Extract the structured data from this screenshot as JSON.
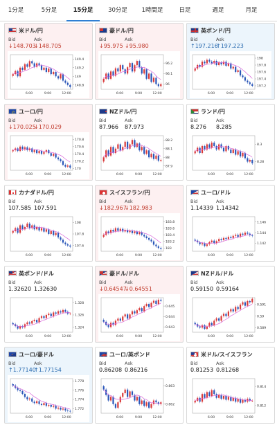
{
  "tabs": [
    {
      "label": "1分足",
      "active": false
    },
    {
      "label": "5分足",
      "active": false
    },
    {
      "label": "15分足",
      "active": true
    },
    {
      "label": "30分足",
      "active": false
    },
    {
      "label": "1時間足",
      "active": false
    },
    {
      "label": "日足",
      "active": false
    },
    {
      "label": "週足",
      "active": false
    },
    {
      "label": "月足",
      "active": false
    }
  ],
  "labels": {
    "bid": "Bid",
    "ask": "Ask"
  },
  "colors": {
    "up_bg": "#ecf5fc",
    "down_bg": "#fdf0f1",
    "up_text": "#2b6cb0",
    "down_text": "#c0392b",
    "candle_up": "#d93a3a",
    "candle_down": "#2a56b8",
    "ma_line": "#d966d9"
  },
  "cards": [
    {
      "pair": "米ドル/円",
      "flag": "us",
      "trend": "down",
      "bid": "↓148.703",
      "ask": "↓148.705",
      "chart_data": {
        "type": "candlestick",
        "yticks": [
          "149.4",
          "149.2",
          "149",
          "148.8"
        ],
        "ylim": [
          148.7,
          149.5
        ],
        "xticks": [
          "6:00",
          "9:00",
          "12:00"
        ],
        "close": [
          149.05,
          149.12,
          149.0,
          149.2,
          149.15,
          149.28,
          149.22,
          149.35,
          149.3,
          149.22,
          149.3,
          149.25,
          149.15,
          149.2,
          149.1,
          149.18,
          149.05,
          149.1,
          149.0,
          148.95,
          149.05,
          148.9,
          148.85,
          148.8,
          148.75
        ]
      }
    },
    {
      "pair": "豪ドル/円",
      "flag": "au",
      "trend": "down",
      "bid": "↓95.975",
      "ask": "↓95.980",
      "chart_data": {
        "type": "candlestick",
        "yticks": [
          "96.2",
          "96.1",
          "96"
        ],
        "ylim": [
          95.95,
          96.28
        ],
        "xticks": [
          "6:00",
          "9:00",
          "12:00"
        ],
        "close": [
          96.05,
          96.1,
          96.05,
          96.12,
          96.08,
          96.15,
          96.12,
          96.18,
          96.14,
          96.1,
          96.16,
          96.2,
          96.12,
          96.18,
          96.22,
          96.16,
          96.1,
          96.14,
          96.05,
          96.1,
          96.02,
          96.06,
          96.0,
          95.98,
          96.0
        ]
      }
    },
    {
      "pair": "英ポンド/円",
      "flag": "gb",
      "trend": "up",
      "bid": "↑197.216",
      "ask": "↑197.223",
      "chart_data": {
        "type": "candlestick",
        "yticks": [
          "198",
          "197.8",
          "197.6",
          "197.4",
          "197.2"
        ],
        "ylim": [
          197.1,
          198.1
        ],
        "xticks": [
          "6:00",
          "9:00",
          "12:00"
        ],
        "close": [
          197.7,
          197.8,
          197.75,
          197.9,
          197.85,
          197.95,
          197.9,
          197.85,
          197.92,
          197.8,
          197.88,
          197.82,
          197.9,
          197.78,
          197.85,
          197.7,
          197.75,
          197.6,
          197.65,
          197.5,
          197.45,
          197.35,
          197.3,
          197.25,
          197.2
        ]
      }
    },
    {
      "pair": "ユーロ/円",
      "flag": "eu",
      "trend": "down",
      "bid": "↓170.025",
      "ask": "↓170.029",
      "chart_data": {
        "type": "candlestick",
        "yticks": [
          "170.8",
          "170.6",
          "170.4",
          "170.2",
          "170"
        ],
        "ylim": [
          169.95,
          170.9
        ],
        "xticks": [
          "6:00",
          "9:00",
          "12:00"
        ],
        "close": [
          170.5,
          170.55,
          170.48,
          170.6,
          170.52,
          170.58,
          170.5,
          170.55,
          170.45,
          170.5,
          170.42,
          170.48,
          170.4,
          170.45,
          170.5,
          170.42,
          170.35,
          170.4,
          170.3,
          170.25,
          170.2,
          170.1,
          170.05,
          170.08,
          170.02
        ]
      }
    },
    {
      "pair": "NZドル/円",
      "flag": "nz",
      "trend": "flat",
      "bid": "87.966",
      "ask": "87.973",
      "chart_data": {
        "type": "candlestick",
        "yticks": [
          "88.2",
          "88.1",
          "88",
          "87.9"
        ],
        "ylim": [
          87.85,
          88.25
        ],
        "xticks": [
          "6:00",
          "9:00",
          "12:00"
        ],
        "close": [
          88.0,
          88.08,
          88.02,
          88.12,
          88.05,
          88.1,
          88.15,
          88.08,
          88.12,
          88.18,
          88.1,
          88.15,
          88.2,
          88.12,
          88.16,
          88.08,
          88.12,
          88.04,
          88.08,
          88.0,
          88.04,
          87.98,
          88.02,
          87.96,
          87.97
        ]
      }
    },
    {
      "pair": "ランド/円",
      "flag": "za",
      "trend": "flat",
      "bid": "8.276",
      "ask": "8.285",
      "chart_data": {
        "type": "candlestick",
        "yticks": [
          "8.3",
          "8.28"
        ],
        "ylim": [
          8.27,
          8.31
        ],
        "xticks": [
          "6:00",
          "9:00",
          "12:00"
        ],
        "close": [
          8.292,
          8.296,
          8.29,
          8.298,
          8.294,
          8.3,
          8.296,
          8.302,
          8.298,
          8.294,
          8.3,
          8.296,
          8.292,
          8.298,
          8.294,
          8.29,
          8.294,
          8.288,
          8.292,
          8.286,
          8.29,
          8.284,
          8.28,
          8.282,
          8.278
        ]
      }
    },
    {
      "pair": "カナダドル/円",
      "flag": "ca",
      "trend": "flat",
      "bid": "107.585",
      "ask": "107.591",
      "chart_data": {
        "type": "candlestick",
        "yticks": [
          "108",
          "107.8",
          "107.6"
        ],
        "ylim": [
          107.5,
          108.1
        ],
        "xticks": [
          "6:00",
          "9:00",
          "12:00"
        ],
        "close": [
          107.85,
          107.9,
          107.82,
          107.95,
          107.88,
          107.92,
          107.98,
          107.9,
          107.95,
          107.88,
          107.92,
          107.86,
          107.9,
          107.84,
          107.88,
          107.8,
          107.85,
          107.78,
          107.82,
          107.74,
          107.7,
          107.65,
          107.62,
          107.6,
          107.58
        ]
      }
    },
    {
      "pair": "スイスフラン/円",
      "flag": "ch",
      "trend": "down",
      "bid": "↓182.967",
      "ask": "↓182.983",
      "chart_data": {
        "type": "candlestick",
        "yticks": [
          "183.8",
          "183.6",
          "183.4",
          "183.2",
          "183"
        ],
        "ylim": [
          182.9,
          183.95
        ],
        "xticks": [
          "6:00",
          "9:00",
          "12:00"
        ],
        "close": [
          183.4,
          183.5,
          183.45,
          183.55,
          183.5,
          183.6,
          183.52,
          183.58,
          183.5,
          183.55,
          183.48,
          183.52,
          183.45,
          183.5,
          183.42,
          183.48,
          183.4,
          183.35,
          183.3,
          183.25,
          183.2,
          183.1,
          183.05,
          183.0,
          182.97
        ]
      }
    },
    {
      "pair": "ユーロ/ドル",
      "flag": "eu-us",
      "trend": "flat",
      "bid": "1.14339",
      "ask": "1.14342",
      "chart_data": {
        "type": "candlestick",
        "yticks": [
          "1.146",
          "1.144",
          "1.142"
        ],
        "ylim": [
          1.1405,
          1.147
        ],
        "xticks": [
          "6:00",
          "9:00",
          "12:00"
        ],
        "close": [
          1.1425,
          1.1422,
          1.1418,
          1.142,
          1.1415,
          1.1418,
          1.1422,
          1.1425,
          1.142,
          1.1424,
          1.1428,
          1.1426,
          1.143,
          1.1428,
          1.1432,
          1.143,
          1.1434,
          1.1436,
          1.1432,
          1.1438,
          1.1436,
          1.144,
          1.1438,
          1.1435,
          1.1434
        ]
      }
    },
    {
      "pair": "英ポンド/ドル",
      "flag": "gb-us",
      "trend": "flat",
      "bid": "1.32620",
      "ask": "1.32630",
      "chart_data": {
        "type": "candlestick",
        "yticks": [
          "1.328",
          "1.326",
          "1.324"
        ],
        "ylim": [
          1.3232,
          1.3288
        ],
        "xticks": [
          "6:00",
          "9:00",
          "12:00"
        ],
        "close": [
          1.3245,
          1.3242,
          1.3238,
          1.3242,
          1.324,
          1.3245,
          1.3248,
          1.3246,
          1.325,
          1.3252,
          1.3248,
          1.3255,
          1.3258,
          1.3255,
          1.326,
          1.3262,
          1.3258,
          1.3264,
          1.3262,
          1.3266,
          1.3264,
          1.3268,
          1.3265,
          1.3262,
          1.3262
        ]
      }
    },
    {
      "pair": "豪ドル/ドル",
      "flag": "au-us",
      "trend": "down",
      "bid": "↓0.64547",
      "ask": "↓0.64551",
      "chart_data": {
        "type": "candlestick",
        "yticks": [
          "0.645",
          "0.644",
          "0.643"
        ],
        "ylim": [
          0.6425,
          0.6458
        ],
        "xticks": [
          "6:00",
          "9:00",
          "12:00"
        ],
        "close": [
          0.6435,
          0.6432,
          0.643,
          0.6434,
          0.6432,
          0.6436,
          0.6438,
          0.6436,
          0.644,
          0.6442,
          0.6438,
          0.6442,
          0.6445,
          0.6443,
          0.6446,
          0.6448,
          0.6445,
          0.645,
          0.6452,
          0.6449,
          0.6453,
          0.6455,
          0.6452,
          0.6456,
          0.6455
        ]
      }
    },
    {
      "pair": "NZドル/ドル",
      "flag": "nz-us",
      "trend": "flat",
      "bid": "0.59150",
      "ask": "0.59164",
      "chart_data": {
        "type": "candlestick",
        "yticks": [
          "0.591",
          "0.59",
          "0.589"
        ],
        "ylim": [
          0.5886,
          0.5916
        ],
        "xticks": [
          "6:00",
          "9:00",
          "12:00"
        ],
        "close": [
          0.5893,
          0.5891,
          0.589,
          0.5892,
          0.5889,
          0.5891,
          0.5894,
          0.5892,
          0.5896,
          0.5898,
          0.5896,
          0.59,
          0.5902,
          0.59,
          0.5904,
          0.5906,
          0.5904,
          0.5908,
          0.5906,
          0.591,
          0.5912,
          0.5909,
          0.5913,
          0.5912,
          0.5915
        ]
      }
    },
    {
      "pair": "ユーロ/豪ドル",
      "flag": "eu-au",
      "trend": "up",
      "bid": "↑1.77140",
      "ask": "↑1.77154",
      "chart_data": {
        "type": "candlestick",
        "yticks": [
          "1.778",
          "1.776",
          "1.774",
          "1.772"
        ],
        "ylim": [
          1.771,
          1.7785
        ],
        "xticks": [
          "6:00",
          "9:00",
          "12:00"
        ],
        "close": [
          1.777,
          1.7765,
          1.776,
          1.7758,
          1.7752,
          1.7745,
          1.774,
          1.7742,
          1.7735,
          1.7732,
          1.7736,
          1.773,
          1.7728,
          1.7732,
          1.7726,
          1.7728,
          1.7724,
          1.7726,
          1.772,
          1.7722,
          1.7718,
          1.772,
          1.7716,
          1.7715,
          1.7714
        ]
      }
    },
    {
      "pair": "ユーロ/英ポンド",
      "flag": "eu-gb",
      "trend": "flat",
      "bid": "0.86208",
      "ask": "0.86216",
      "chart_data": {
        "type": "candlestick",
        "yticks": [
          "0.863",
          "0.862"
        ],
        "ylim": [
          0.8615,
          0.8634
        ],
        "xticks": [
          "6:00",
          "9:00",
          "12:00"
        ],
        "close": [
          0.8628,
          0.8625,
          0.8622,
          0.8624,
          0.862,
          0.8618,
          0.8621,
          0.8624,
          0.8626,
          0.8628,
          0.8624,
          0.8627,
          0.8625,
          0.8622,
          0.8624,
          0.862,
          0.8622,
          0.8619,
          0.8621,
          0.8618,
          0.862,
          0.8622,
          0.8621,
          0.862,
          0.8621
        ]
      }
    },
    {
      "pair": "米ドル/スイスフラン",
      "flag": "us-ch",
      "trend": "flat",
      "bid": "0.81253",
      "ask": "0.81268",
      "chart_data": {
        "type": "candlestick",
        "yticks": [
          "0.814",
          "0.812"
        ],
        "ylim": [
          0.8112,
          0.8148
        ],
        "xticks": [
          "6:00",
          "9:00",
          "12:00"
        ],
        "close": [
          0.8125,
          0.8128,
          0.8124,
          0.8132,
          0.8128,
          0.8134,
          0.813,
          0.8136,
          0.8132,
          0.8128,
          0.8131,
          0.8127,
          0.813,
          0.8126,
          0.8129,
          0.8125,
          0.8128,
          0.8124,
          0.8127,
          0.8123,
          0.8126,
          0.8124,
          0.8127,
          0.8125,
          0.8125
        ]
      }
    }
  ]
}
